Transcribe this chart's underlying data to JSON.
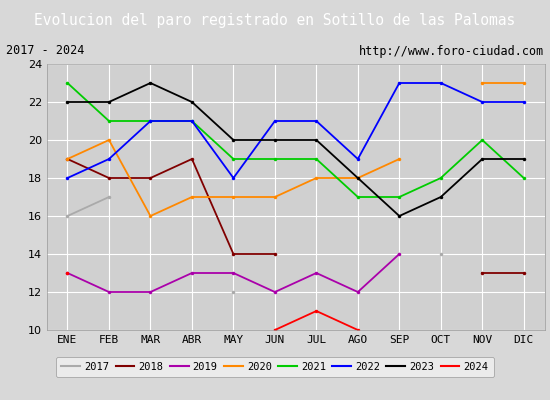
{
  "title": "Evolucion del paro registrado en Sotillo de las Palomas",
  "subtitle_left": "2017 - 2024",
  "subtitle_right": "http://www.foro-ciudad.com",
  "ylim": [
    10,
    24
  ],
  "yticks": [
    10,
    12,
    14,
    16,
    18,
    20,
    22,
    24
  ],
  "months": [
    "ENE",
    "FEB",
    "MAR",
    "ABR",
    "MAY",
    "JUN",
    "JUL",
    "AGO",
    "SEP",
    "OCT",
    "NOV",
    "DIC"
  ],
  "series": {
    "2017": {
      "color": "#aaaaaa",
      "values": [
        16,
        17,
        null,
        null,
        12,
        null,
        null,
        null,
        null,
        14,
        null,
        null
      ]
    },
    "2018": {
      "color": "#800000",
      "values": [
        19,
        18,
        18,
        19,
        14,
        14,
        null,
        null,
        null,
        null,
        13,
        13
      ]
    },
    "2019": {
      "color": "#aa00aa",
      "values": [
        13,
        12,
        12,
        13,
        13,
        12,
        13,
        12,
        14,
        null,
        null,
        null
      ]
    },
    "2020": {
      "color": "#ff8800",
      "values": [
        19,
        20,
        16,
        17,
        17,
        17,
        18,
        18,
        19,
        null,
        23,
        23
      ]
    },
    "2021": {
      "color": "#00cc00",
      "values": [
        23,
        21,
        21,
        21,
        19,
        19,
        19,
        17,
        17,
        18,
        20,
        18
      ]
    },
    "2022": {
      "color": "#0000ff",
      "values": [
        18,
        19,
        21,
        21,
        18,
        21,
        21,
        19,
        23,
        23,
        22,
        22
      ]
    },
    "2023": {
      "color": "#000000",
      "values": [
        22,
        22,
        23,
        22,
        20,
        20,
        20,
        18,
        16,
        17,
        19,
        19
      ]
    },
    "2024": {
      "color": "#ff0000",
      "values": [
        13,
        null,
        null,
        null,
        null,
        10,
        11,
        10,
        null,
        null,
        null,
        null
      ]
    }
  },
  "background_color": "#d8d8d8",
  "plot_bg_color": "#d0d0d0",
  "title_bg_color": "#4a7ab5",
  "title_color": "white",
  "grid_color": "#ffffff",
  "legend_bg": "#f0f0f0",
  "title_fontsize": 10.5,
  "subtitle_fontsize": 8.5,
  "tick_fontsize": 8,
  "legend_fontsize": 7.5
}
